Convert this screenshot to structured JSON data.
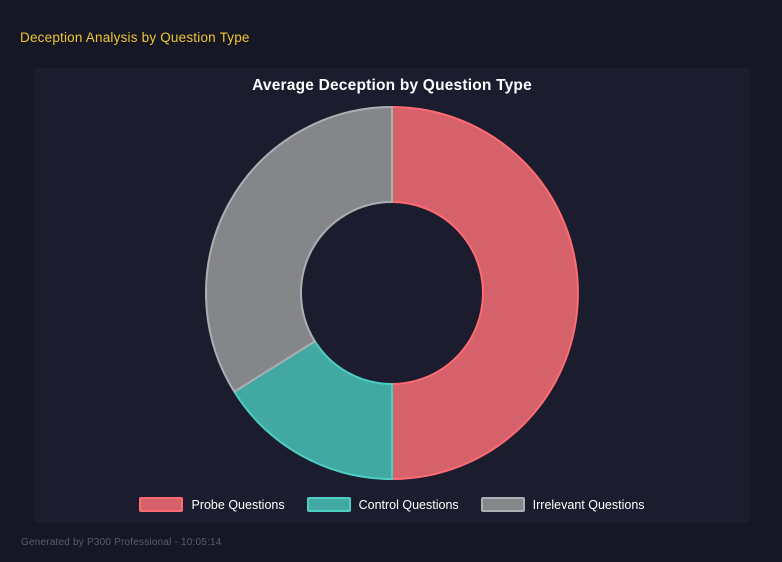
{
  "header": {
    "title": "Deception Analysis by Question Type"
  },
  "chart_data": {
    "type": "pie",
    "variant": "doughnut",
    "title": "Average Deception by Question Type",
    "labels": [
      "Probe Questions",
      "Control Questions",
      "Irrelevant Questions"
    ],
    "values_percent": [
      50,
      16.1,
      33.9
    ],
    "cutout_ratio": 0.49,
    "rotation_start_deg": 0,
    "direction": "clockwise",
    "legend_position": "bottom",
    "segment_colors": [
      {
        "fill": "#d5616b",
        "border": "#ff6b72"
      },
      {
        "fill": "#42a9a2",
        "border": "#4ecdc4"
      },
      {
        "fill": "#85868a",
        "border": "#adaeb2"
      }
    ]
  },
  "footer": {
    "text": "Generated by P300 Professional - 10:05:14"
  },
  "colors": {
    "page_background": "#161725",
    "panel_background": "#1b1c2e",
    "header_accent": "#eec62f",
    "chart_title": "#ffffff",
    "legend_text": "#ffffff",
    "footer_text": "#585c6d"
  }
}
